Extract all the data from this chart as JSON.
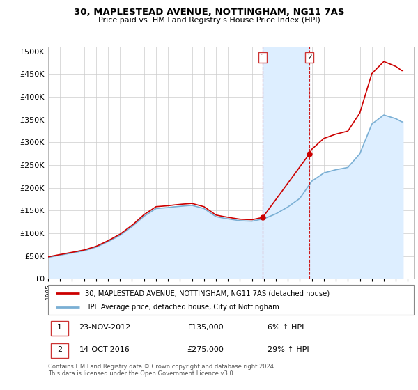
{
  "title": "30, MAPLESTEAD AVENUE, NOTTINGHAM, NG11 7AS",
  "subtitle": "Price paid vs. HM Land Registry's House Price Index (HPI)",
  "ytick_values": [
    0,
    50000,
    100000,
    150000,
    200000,
    250000,
    300000,
    350000,
    400000,
    450000,
    500000
  ],
  "ylim": [
    0,
    510000
  ],
  "xlim_start": 1995.0,
  "xlim_end": 2025.5,
  "property_color": "#cc0000",
  "hpi_color": "#7aafd4",
  "hpi_fill_color": "#ddeeff",
  "annotation_box_color": "#cc3333",
  "annotation_fill_color": "#ddeeff",
  "transaction1_date": "23-NOV-2012",
  "transaction1_price": "£135,000",
  "transaction1_hpi": "6% ↑ HPI",
  "transaction2_date": "14-OCT-2016",
  "transaction2_price": "£275,000",
  "transaction2_hpi": "29% ↑ HPI",
  "legend_label_property": "30, MAPLESTEAD AVENUE, NOTTINGHAM, NG11 7AS (detached house)",
  "legend_label_hpi": "HPI: Average price, detached house, City of Nottingham",
  "footnote": "Contains HM Land Registry data © Crown copyright and database right 2024.\nThis data is licensed under the Open Government Licence v3.0.",
  "sale1_year": 2012.9,
  "sale1_price": 135000,
  "sale1_hpi_ratio": 1.06,
  "sale2_year": 2016.8,
  "sale2_price": 275000,
  "sale2_hpi_ratio": 1.29
}
